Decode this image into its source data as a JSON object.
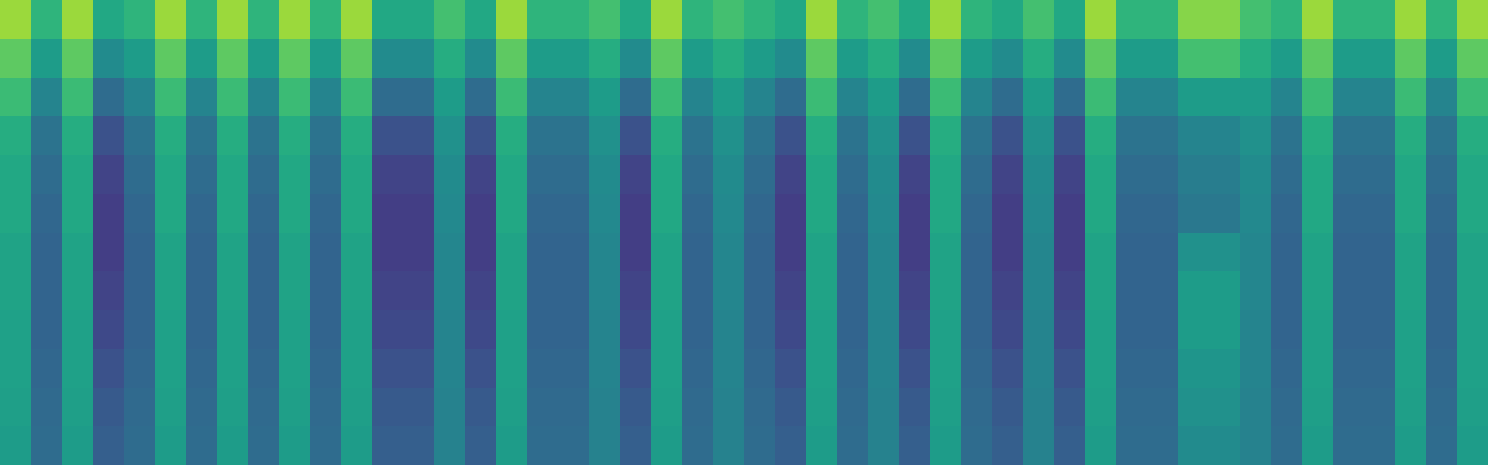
{
  "chart_data": {
    "type": "heatmap",
    "color": "viridis",
    "tick_labels": false,
    "zlim": [
      0,
      100
    ],
    "z": [
      [
        85,
        65,
        85,
        60,
        65,
        85,
        65,
        85,
        65,
        85,
        65,
        85,
        60,
        60,
        70,
        60,
        85,
        65,
        65,
        70,
        60,
        85,
        65,
        70,
        65,
        60,
        85,
        65,
        70,
        60,
        85,
        65,
        60,
        70,
        60,
        85,
        65,
        65,
        82,
        82,
        70,
        65,
        85,
        65,
        65,
        85,
        65,
        85
      ],
      [
        75,
        55,
        75,
        48,
        55,
        75,
        55,
        75,
        55,
        75,
        55,
        75,
        48,
        48,
        62,
        48,
        75,
        55,
        55,
        62,
        48,
        75,
        55,
        62,
        55,
        48,
        75,
        55,
        62,
        48,
        75,
        55,
        48,
        62,
        48,
        75,
        55,
        55,
        70,
        70,
        62,
        55,
        75,
        55,
        55,
        75,
        55,
        75
      ],
      [
        68,
        45,
        68,
        35,
        45,
        68,
        45,
        68,
        45,
        68,
        45,
        68,
        35,
        35,
        55,
        35,
        68,
        45,
        45,
        55,
        35,
        68,
        45,
        55,
        45,
        35,
        68,
        45,
        55,
        35,
        68,
        45,
        35,
        55,
        35,
        68,
        45,
        45,
        55,
        55,
        55,
        45,
        68,
        45,
        45,
        68,
        45,
        68
      ],
      [
        62,
        38,
        62,
        25,
        38,
        62,
        38,
        62,
        38,
        62,
        38,
        62,
        25,
        25,
        50,
        25,
        62,
        38,
        38,
        50,
        25,
        62,
        38,
        50,
        38,
        25,
        62,
        38,
        50,
        25,
        62,
        38,
        25,
        50,
        25,
        62,
        38,
        38,
        45,
        45,
        50,
        38,
        62,
        38,
        38,
        62,
        38,
        62
      ],
      [
        60,
        35,
        60,
        20,
        35,
        60,
        35,
        60,
        35,
        60,
        35,
        60,
        20,
        20,
        48,
        20,
        60,
        35,
        35,
        48,
        20,
        60,
        35,
        48,
        35,
        20,
        60,
        35,
        48,
        20,
        60,
        35,
        20,
        48,
        20,
        60,
        35,
        35,
        42,
        42,
        48,
        35,
        60,
        35,
        35,
        60,
        35,
        60
      ],
      [
        60,
        33,
        60,
        18,
        33,
        60,
        33,
        60,
        33,
        60,
        33,
        60,
        18,
        18,
        47,
        18,
        60,
        33,
        33,
        47,
        18,
        60,
        33,
        47,
        33,
        18,
        60,
        33,
        47,
        18,
        60,
        33,
        18,
        47,
        18,
        60,
        33,
        33,
        40,
        40,
        47,
        33,
        60,
        33,
        33,
        60,
        33,
        60
      ],
      [
        58,
        32,
        58,
        18,
        32,
        58,
        32,
        58,
        32,
        58,
        32,
        58,
        18,
        18,
        46,
        18,
        58,
        32,
        32,
        46,
        18,
        58,
        32,
        46,
        32,
        18,
        58,
        32,
        46,
        18,
        58,
        32,
        18,
        46,
        18,
        58,
        32,
        32,
        50,
        50,
        46,
        32,
        58,
        32,
        32,
        58,
        32,
        58
      ],
      [
        58,
        32,
        58,
        20,
        32,
        58,
        32,
        58,
        32,
        58,
        32,
        58,
        20,
        20,
        46,
        20,
        58,
        32,
        32,
        46,
        20,
        58,
        32,
        46,
        32,
        20,
        58,
        32,
        46,
        20,
        58,
        32,
        20,
        46,
        20,
        58,
        32,
        32,
        55,
        55,
        46,
        32,
        58,
        32,
        32,
        58,
        32,
        58
      ],
      [
        57,
        32,
        57,
        22,
        32,
        57,
        32,
        57,
        32,
        57,
        32,
        57,
        22,
        22,
        45,
        22,
        57,
        32,
        32,
        45,
        22,
        57,
        32,
        45,
        32,
        22,
        57,
        32,
        45,
        22,
        57,
        32,
        22,
        45,
        22,
        57,
        32,
        32,
        55,
        55,
        45,
        32,
        57,
        32,
        32,
        57,
        32,
        57
      ],
      [
        57,
        33,
        57,
        25,
        33,
        57,
        33,
        57,
        33,
        57,
        33,
        57,
        25,
        25,
        45,
        25,
        57,
        33,
        33,
        45,
        25,
        57,
        33,
        45,
        33,
        25,
        57,
        33,
        45,
        25,
        57,
        33,
        25,
        45,
        25,
        57,
        33,
        33,
        52,
        52,
        45,
        33,
        57,
        33,
        33,
        57,
        33,
        57
      ],
      [
        56,
        34,
        56,
        28,
        34,
        56,
        34,
        56,
        34,
        56,
        34,
        56,
        28,
        28,
        44,
        28,
        56,
        34,
        34,
        44,
        28,
        56,
        34,
        44,
        34,
        28,
        56,
        34,
        44,
        28,
        56,
        34,
        28,
        44,
        28,
        56,
        34,
        34,
        50,
        50,
        44,
        34,
        56,
        34,
        34,
        56,
        34,
        56
      ],
      [
        55,
        35,
        55,
        30,
        35,
        55,
        35,
        55,
        35,
        55,
        35,
        55,
        30,
        30,
        44,
        30,
        55,
        35,
        35,
        44,
        30,
        55,
        35,
        44,
        35,
        30,
        55,
        35,
        44,
        30,
        55,
        35,
        30,
        44,
        30,
        55,
        35,
        35,
        48,
        48,
        44,
        35,
        55,
        35,
        35,
        55,
        35,
        55
      ]
    ]
  }
}
